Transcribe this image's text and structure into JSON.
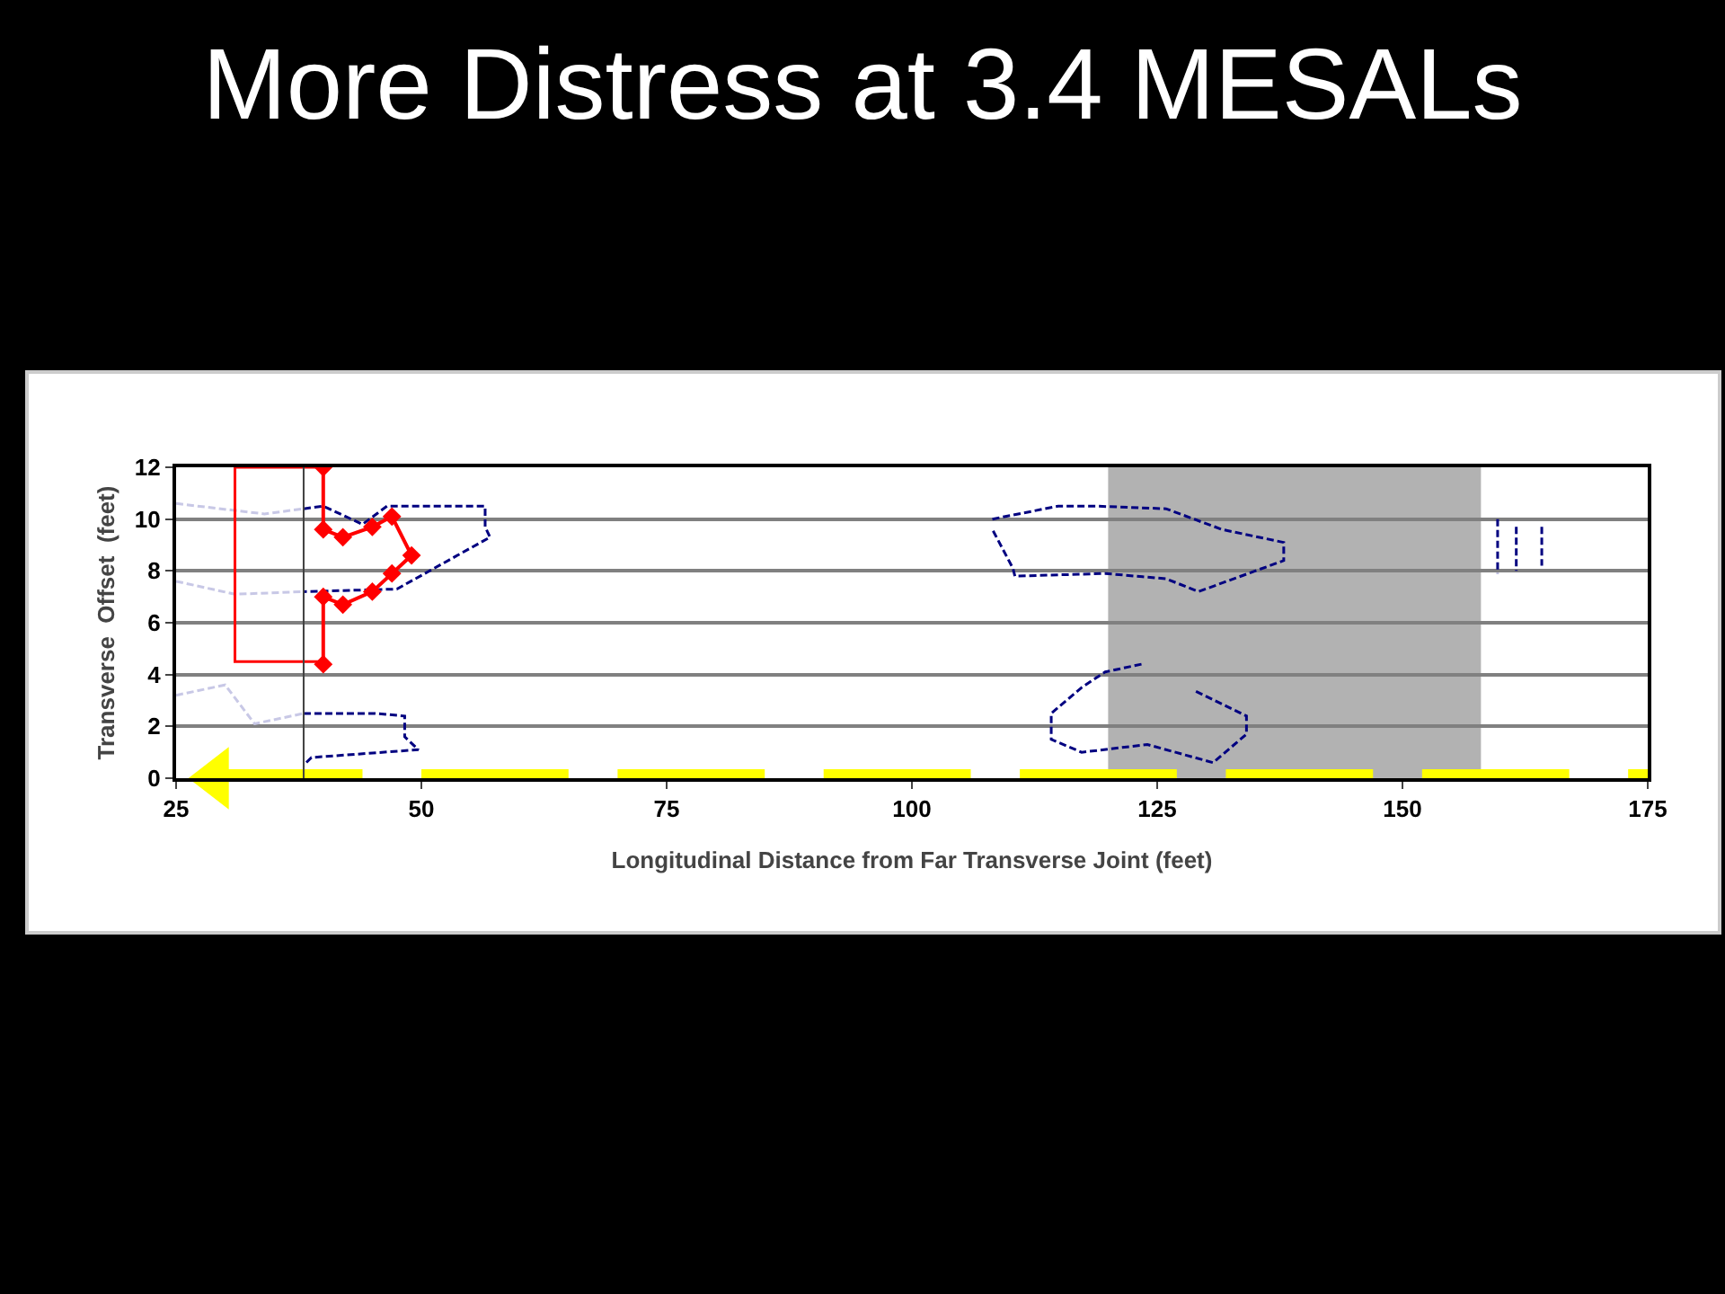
{
  "chart_data": {
    "type": "line",
    "title": "More Distress at 3.4 MESALs",
    "xlabel": "Longitudinal Distance from Far Transverse Joint (feet)",
    "ylabel": "Transverse  Offset  (feet)",
    "xlim": [
      25,
      175
    ],
    "xticks": [
      25,
      50,
      75,
      100,
      125,
      150,
      175
    ],
    "ylim": [
      0,
      12
    ],
    "yticks": [
      0,
      2,
      4,
      6,
      8,
      10,
      12
    ],
    "grid": "y",
    "bands": [
      {
        "axis": "x",
        "from": 120,
        "to": 158,
        "color": "#b2b2b2"
      }
    ],
    "ref_lines": [
      {
        "axis": "x",
        "value": 38,
        "color": "#404040"
      }
    ],
    "series": [
      {
        "color": "#c8c8e6",
        "line_style": "dashed",
        "marker": "none",
        "x": [
          25,
          34,
          38,
          null,
          25,
          31,
          38,
          null,
          25,
          30,
          33,
          38
        ],
        "values": [
          10.6,
          10.2,
          10.4,
          null,
          7.6,
          7.1,
          7.2,
          null,
          3.2,
          3.6,
          2.1,
          2.5
        ]
      },
      {
        "color": "#000080",
        "line_style": "dashed",
        "marker": "none",
        "x": [
          38,
          40,
          44,
          46.5,
          56.5,
          56.5,
          57,
          47.5,
          38,
          null,
          38,
          45.3,
          48.3,
          48.3,
          49.7,
          38.8,
          38,
          null,
          108.2,
          114.9,
          118.8,
          125.9,
          131.6,
          137.9,
          137.9,
          129.2,
          125.9,
          119.7,
          110.5,
          110.3,
          108.2,
          null,
          123.4,
          119.7,
          117.3,
          114.2,
          114.2,
          117.3,
          124.0,
          130.7,
          134.1,
          134.1,
          128.7,
          null,
          159.7,
          159.7,
          null,
          161.6,
          161.6,
          null,
          164.2,
          164.2
        ],
        "values": [
          10.4,
          10.5,
          9.8,
          10.5,
          10.5,
          9.7,
          9.3,
          7.3,
          7.2,
          null,
          2.5,
          2.5,
          2.4,
          1.6,
          1.1,
          0.8,
          0.5,
          null,
          10.0,
          10.5,
          10.5,
          10.4,
          9.6,
          9.1,
          8.4,
          7.2,
          7.7,
          7.9,
          7.8,
          8.1,
          9.6,
          null,
          4.4,
          4.1,
          3.5,
          2.5,
          1.5,
          1.0,
          1.3,
          0.6,
          1.7,
          2.4,
          3.4,
          null,
          10,
          7.9,
          null,
          9.7,
          8,
          null,
          9.7,
          8.2
        ]
      },
      {
        "color": "#ff0000",
        "line_style": "solid",
        "marker": "none",
        "x": [
          40,
          31,
          31,
          40
        ],
        "values": [
          12,
          12,
          4.5,
          4.5
        ]
      },
      {
        "color": "#ff0000",
        "line_style": "solid",
        "marker": "diamond",
        "x": [
          40,
          40,
          42,
          45,
          47,
          49,
          47,
          45,
          42,
          40,
          40
        ],
        "values": [
          12,
          9.6,
          9.3,
          9.7,
          10.1,
          8.6,
          7.9,
          7.2,
          6.7,
          7.0,
          4.4
        ]
      },
      {
        "color": "#ffff00",
        "line_style": "solid",
        "marker": "none",
        "x": [
          29,
          44,
          null,
          50,
          65,
          null,
          70,
          85,
          null,
          91,
          106,
          null,
          111,
          127,
          null,
          132,
          147,
          null,
          152,
          167,
          null,
          173,
          175
        ],
        "values": [
          0,
          0,
          null,
          0,
          0,
          null,
          0,
          0,
          null,
          0,
          0,
          null,
          0,
          0,
          null,
          0,
          0,
          null,
          0,
          0,
          null,
          0,
          0
        ]
      },
      {
        "type": "scatter",
        "color": "#ffff00",
        "marker": "triangle",
        "x": [
          29
        ],
        "values": [
          0
        ]
      }
    ]
  }
}
